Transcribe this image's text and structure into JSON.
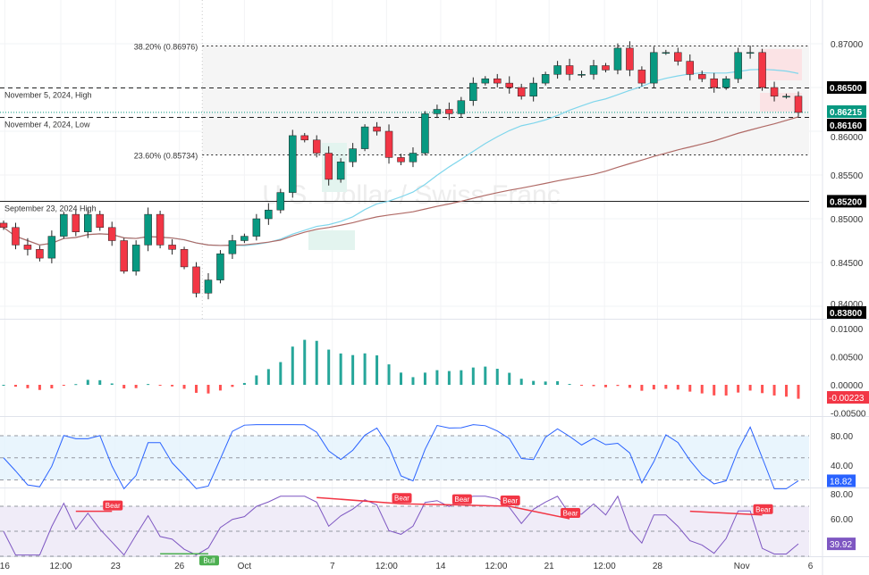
{
  "chart_data": {
    "type": "candlestick",
    "symbol_watermark": "USDCHF, 4h",
    "description_watermark": "U.S. Dollar / Swiss Franc",
    "price_axis": {
      "ticks": [
        "0.87000",
        "0.86500",
        "0.86000",
        "0.85500",
        "0.85000",
        "0.84500",
        "0.84000"
      ],
      "ylim": [
        0.8375,
        0.8735
      ]
    },
    "closes": [
      0.849,
      0.847,
      0.8465,
      0.8455,
      0.848,
      0.8505,
      0.8485,
      0.8505,
      0.849,
      0.8475,
      0.844,
      0.847,
      0.8505,
      0.847,
      0.8465,
      0.8445,
      0.8415,
      0.843,
      0.846,
      0.8475,
      0.848,
      0.85,
      0.851,
      0.853,
      0.8595,
      0.859,
      0.8575,
      0.8545,
      0.8565,
      0.858,
      0.8605,
      0.86,
      0.857,
      0.8565,
      0.8575,
      0.862,
      0.8625,
      0.862,
      0.8635,
      0.8655,
      0.866,
      0.8655,
      0.865,
      0.864,
      0.8655,
      0.8665,
      0.8675,
      0.8665,
      0.8665,
      0.8675,
      0.867,
      0.8695,
      0.867,
      0.8655,
      0.869,
      0.869,
      0.868,
      0.8665,
      0.866,
      0.865,
      0.866,
      0.869,
      0.869,
      0.865,
      0.864,
      0.864,
      0.86215
    ],
    "moving_averages": [
      {
        "period": 20,
        "color": "#7fd6ec"
      },
      {
        "period": 50,
        "color": "#b06a66"
      }
    ],
    "time_axis": [
      {
        "label": "16",
        "bar": 0.1
      },
      {
        "label": "12:00",
        "bar": 4.75
      },
      {
        "label": "23",
        "bar": 9.3
      },
      {
        "label": "26",
        "bar": 14.6
      },
      {
        "label": "Oct",
        "bar": 20
      },
      {
        "label": "7",
        "bar": 27.3
      },
      {
        "label": "12:00",
        "bar": 31.8
      },
      {
        "label": "14",
        "bar": 36.3
      },
      {
        "label": "12:00",
        "bar": 40.9
      },
      {
        "label": "21",
        "bar": 45.3
      },
      {
        "label": "12:00",
        "bar": 49.9
      },
      {
        "label": "28",
        "bar": 54.3
      },
      {
        "label": "Nov",
        "bar": 61.3
      },
      {
        "label": "6",
        "bar": 67
      }
    ],
    "levels": [
      {
        "label": "38.20% (0.86976)",
        "price": 0.86976,
        "style": "dotted",
        "start_bar": 16.5,
        "align": "start"
      },
      {
        "label": "23.60% (0.85734)",
        "price": 0.85734,
        "style": "dotted",
        "start_bar": 16.5,
        "align": "start"
      },
      {
        "label": "November 5, 2024, High",
        "price": 0.865,
        "style": "dashed",
        "tag": "0.86500"
      },
      {
        "label": "November 4, 2024, Low",
        "price": 0.8616,
        "style": "dashed",
        "tag": "0.86160"
      },
      {
        "label": "September 23, 2024 High",
        "price": 0.852,
        "style": "solid",
        "tag": "0.85200"
      }
    ],
    "last_price": {
      "value": 0.86215,
      "tag": "0.86215",
      "color": "#089981"
    },
    "low_tag": {
      "value": 0.838,
      "tag": "0.83800"
    },
    "colors": {
      "up": "#089981",
      "down": "#f23645"
    },
    "macd": {
      "ticks": [
        "0.01000",
        "0.00500",
        "0.00000",
        "-0.00500"
      ],
      "ylim": [
        -0.0055,
        0.0115
      ],
      "last": "-0.00223",
      "last_color": "#f23645"
    },
    "stochastic": {
      "ticks": [
        "80.00",
        "40.00"
      ],
      "bands": [
        80,
        50,
        20
      ],
      "ylim": [
        0,
        105
      ],
      "last": "18.82",
      "color": "#2962ff"
    },
    "rsi": {
      "ticks": [
        "80.00",
        "60.00"
      ],
      "bands": [
        70,
        50,
        30
      ],
      "ylim": [
        30,
        85
      ],
      "last": "39.92",
      "color": "#7e57c2",
      "divergences": [
        {
          "type": "Bear",
          "from_bar": 6,
          "to_bar": 9,
          "from": 66,
          "to": 66
        },
        {
          "type": "Bull",
          "from_bar": 13,
          "to_bar": 17,
          "from": 32,
          "to": 32
        },
        {
          "type": "Bear",
          "from_bar": 26,
          "to_bar": 33,
          "from": 77,
          "to": 72
        },
        {
          "type": "Bear",
          "from_bar": 33,
          "to_bar": 38,
          "from": 72,
          "to": 71
        },
        {
          "type": "Bear",
          "from_bar": 38,
          "to_bar": 42,
          "from": 71,
          "to": 70
        },
        {
          "type": "Bear",
          "from_bar": 42,
          "to_bar": 47,
          "from": 70,
          "to": 60
        },
        {
          "type": "Bear",
          "from_bar": 57,
          "to_bar": 63,
          "from": 66,
          "to": 63
        }
      ]
    }
  }
}
